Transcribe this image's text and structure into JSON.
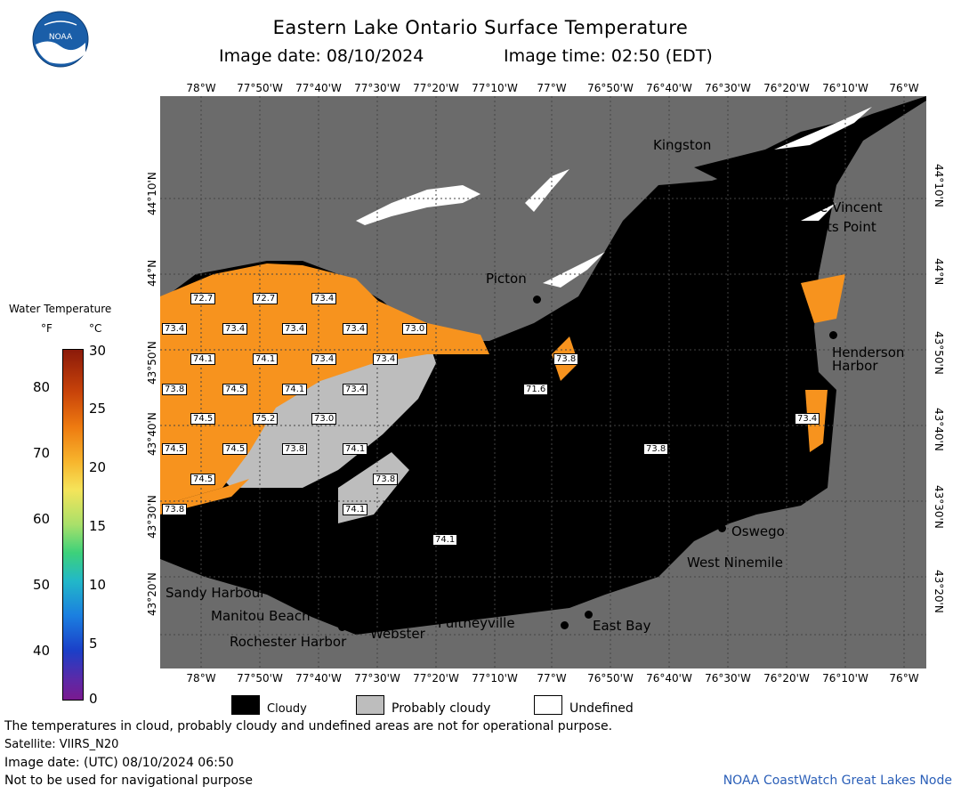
{
  "header": {
    "title": "Eastern Lake Ontario Surface Temperature",
    "image_date": "Image date: 08/10/2024",
    "image_time": "Image time: 02:50 (EDT)"
  },
  "logo": {
    "text": "NOAA"
  },
  "lon_labels": [
    "78°W",
    "77°50'W",
    "77°40'W",
    "77°30'W",
    "77°20'W",
    "77°10'W",
    "77°W",
    "76°50'W",
    "76°40'W",
    "76°30'W",
    "76°20'W",
    "76°10'W",
    "76°W"
  ],
  "lat_labels": [
    "44°10'N",
    "44°N",
    "43°50'N",
    "43°40'N",
    "43°30'N",
    "43°20'N"
  ],
  "places": {
    "kingston": "Kingston",
    "cape_vincent": "Cape Vincent",
    "tibbetts_point": "Tibbetts Point",
    "picton": "Picton",
    "henderson_harbor_1": "Henderson",
    "henderson_harbor_2": "Harbor",
    "oswego": "Oswego",
    "west_ninemile": "West Ninemile",
    "sandy_harbour": "Sandy Harbour",
    "manitou_beach": "Manitou Beach",
    "rochester_harbor": "Rochester Harbor",
    "webster": "Webster",
    "pultneyville": "Pultneyville",
    "east_bay": "East Bay"
  },
  "temp_labels": [
    "72.7",
    "72.7",
    "73.4",
    "73.4",
    "73.4",
    "73.4",
    "73.4",
    "73.0",
    "74.1",
    "74.1",
    "73.4",
    "73.4",
    "73.8",
    "73.8",
    "74.5",
    "74.1",
    "73.4",
    "71.6",
    "74.5",
    "75.2",
    "73.0",
    "73.4",
    "74.5",
    "74.5",
    "73.8",
    "74.1",
    "73.8",
    "73.8",
    "74.5",
    "74.1",
    "73.8",
    "74.1"
  ],
  "legend": {
    "title": "Water Temperature",
    "unit_f": "°F",
    "unit_c": "°C",
    "f_ticks": [
      "80",
      "70",
      "60",
      "50",
      "40"
    ],
    "c_ticks": [
      "30",
      "25",
      "20",
      "15",
      "10",
      "5",
      "0"
    ]
  },
  "key": {
    "cloudy": "Cloudy",
    "probably_cloudy": "Probably cloudy",
    "undefined": "Undefined"
  },
  "footer": {
    "disclaimer": "The temperatures in cloud, probably cloudy and undefined areas are not for operational purpose.",
    "satellite": "Satellite: VIIRS_N20",
    "utc_date": "Image date: (UTC) 08/10/2024  06:50",
    "nav": "Not to be used for navigational purpose",
    "credit": "NOAA CoastWatch Great Lakes Node"
  },
  "colors": {
    "land": "#6b6b6b",
    "cloud": "#000000",
    "prob_cloud": "#bdbdbd",
    "water_warm": "#f7931e",
    "undefined": "#ffffff"
  }
}
